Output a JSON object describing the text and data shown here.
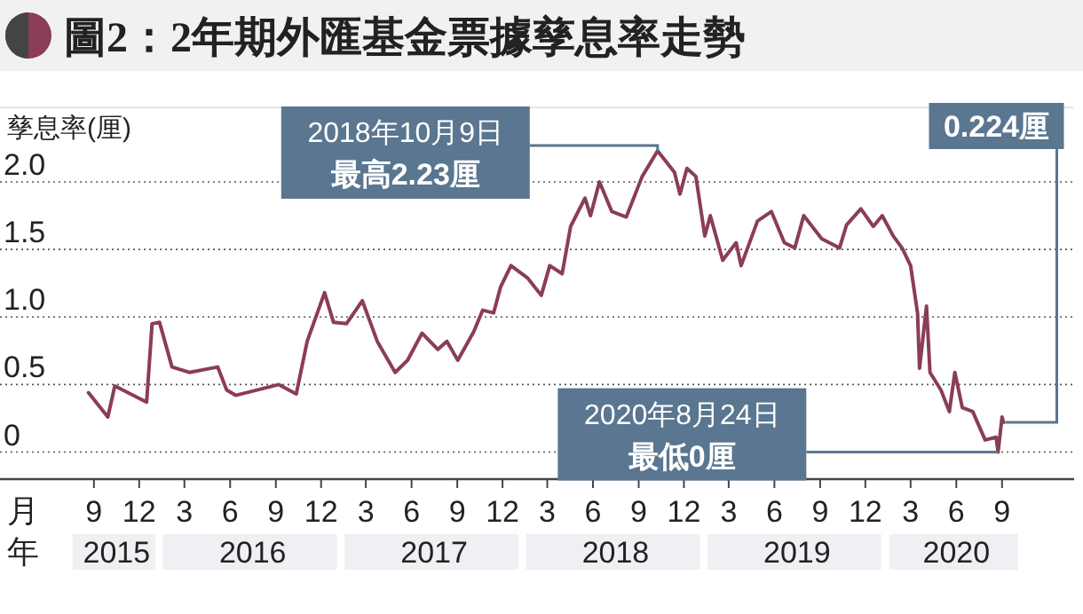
{
  "chart_data": {
    "type": "line",
    "title": "圖2：2年期外匯基金票據孳息率走勢",
    "ylabel": "孳息率(厘)",
    "x": [
      "2015-08-21",
      "2015-09-29",
      "2015-10-13",
      "2015-12-16",
      "2015-12-27",
      "2016-01-11",
      "2016-02-05",
      "2016-03-11",
      "2016-05-07",
      "2016-05-25",
      "2016-06-12",
      "2016-09-07",
      "2016-10-12",
      "2016-11-03",
      "2016-12-08",
      "2016-12-26",
      "2017-01-21",
      "2017-02-22",
      "2017-03-24",
      "2017-04-29",
      "2017-05-24",
      "2017-06-22",
      "2017-07-24",
      "2017-08-11",
      "2017-09-02",
      "2017-10-04",
      "2017-10-22",
      "2017-11-13",
      "2017-11-27",
      "2017-12-18",
      "2018-01-20",
      "2018-02-17",
      "2018-03-06",
      "2018-03-31",
      "2018-04-17",
      "2018-05-16",
      "2018-05-27",
      "2018-06-14",
      "2018-07-09",
      "2018-08-07",
      "2018-09-08",
      "2018-10-09",
      "2018-11-12",
      "2018-11-23",
      "2018-12-07",
      "2018-12-25",
      "2019-01-12",
      "2019-01-23",
      "2019-02-17",
      "2019-03-16",
      "2019-03-26",
      "2019-04-28",
      "2019-05-26",
      "2019-06-21",
      "2019-07-12",
      "2019-07-30",
      "2019-09-04",
      "2019-10-10",
      "2019-10-24",
      "2019-11-22",
      "2019-12-17",
      "2020-01-04",
      "2020-01-26",
      "2020-02-13",
      "2020-03-01",
      "2020-03-15",
      "2020-03-19",
      "2020-04-02",
      "2020-04-09",
      "2020-05-01",
      "2020-05-18",
      "2020-05-29",
      "2020-06-13",
      "2020-07-04",
      "2020-07-29",
      "2020-08-20",
      "2020-08-24",
      "2020-09-01",
      "2020-09-04"
    ],
    "series": [
      {
        "color": "#8b3d55",
        "values": [
          0.44,
          0.26,
          0.49,
          0.37,
          0.95,
          0.96,
          0.63,
          0.59,
          0.63,
          0.46,
          0.42,
          0.5,
          0.43,
          0.82,
          1.18,
          0.96,
          0.95,
          1.12,
          0.82,
          0.59,
          0.68,
          0.88,
          0.76,
          0.82,
          0.68,
          0.89,
          1.05,
          1.03,
          1.22,
          1.38,
          1.29,
          1.16,
          1.38,
          1.32,
          1.67,
          1.88,
          1.75,
          2.0,
          1.78,
          1.74,
          2.04,
          2.23,
          2.07,
          1.91,
          2.1,
          2.04,
          1.6,
          1.75,
          1.42,
          1.55,
          1.38,
          1.71,
          1.78,
          1.55,
          1.51,
          1.75,
          1.58,
          1.51,
          1.68,
          1.8,
          1.67,
          1.75,
          1.6,
          1.51,
          1.38,
          1.03,
          0.62,
          1.08,
          0.59,
          0.46,
          0.3,
          0.59,
          0.33,
          0.3,
          0.09,
          0.11,
          0,
          0.26,
          0.22
        ]
      }
    ],
    "xlim": [
      "2015-02-24",
      "2021-01-24"
    ],
    "xticks": [
      {
        "value": "2015-09-01",
        "label": "9"
      },
      {
        "value": "2015-12-01",
        "label": "12"
      },
      {
        "value": "2016-03-01",
        "label": "3"
      },
      {
        "value": "2016-06-01",
        "label": "6"
      },
      {
        "value": "2016-09-01",
        "label": "9"
      },
      {
        "value": "2016-12-01",
        "label": "12"
      },
      {
        "value": "2017-03-01",
        "label": "3"
      },
      {
        "value": "2017-06-01",
        "label": "6"
      },
      {
        "value": "2017-09-01",
        "label": "9"
      },
      {
        "value": "2017-12-01",
        "label": "12"
      },
      {
        "value": "2018-03-01",
        "label": "3"
      },
      {
        "value": "2018-06-01",
        "label": "6"
      },
      {
        "value": "2018-09-01",
        "label": "9"
      },
      {
        "value": "2018-12-01",
        "label": "12"
      },
      {
        "value": "2019-03-01",
        "label": "3"
      },
      {
        "value": "2019-06-01",
        "label": "6"
      },
      {
        "value": "2019-09-01",
        "label": "9"
      },
      {
        "value": "2019-12-01",
        "label": "12"
      },
      {
        "value": "2020-03-01",
        "label": "3"
      },
      {
        "value": "2020-06-01",
        "label": "6"
      },
      {
        "value": "2020-09-01",
        "label": "9"
      }
    ],
    "ylim": [
      -0.2,
      2.55
    ],
    "yticks": [
      {
        "value": 0,
        "label": "0"
      },
      {
        "value": 0.5,
        "label": "0.5"
      },
      {
        "value": 1,
        "label": "1.0"
      },
      {
        "value": 1.5,
        "label": "1.5"
      },
      {
        "value": 2,
        "label": "2.0"
      }
    ],
    "grid": "y",
    "annotations": [
      {
        "text": "2018年10月9日",
        "x": "2018-10-09",
        "y": 2.23
      },
      "最高2.23厘",
      {
        "text": "2020年8月24日",
        "x": "2020-08-24",
        "y": 0
      },
      "最低0厘",
      "月",
      "年",
      "2015",
      "2016",
      "2017",
      "2018",
      "2019",
      "2020",
      {
        "text": "0.224厘",
        "x": "2020-09-04",
        "y": 0.22
      }
    ]
  }
}
